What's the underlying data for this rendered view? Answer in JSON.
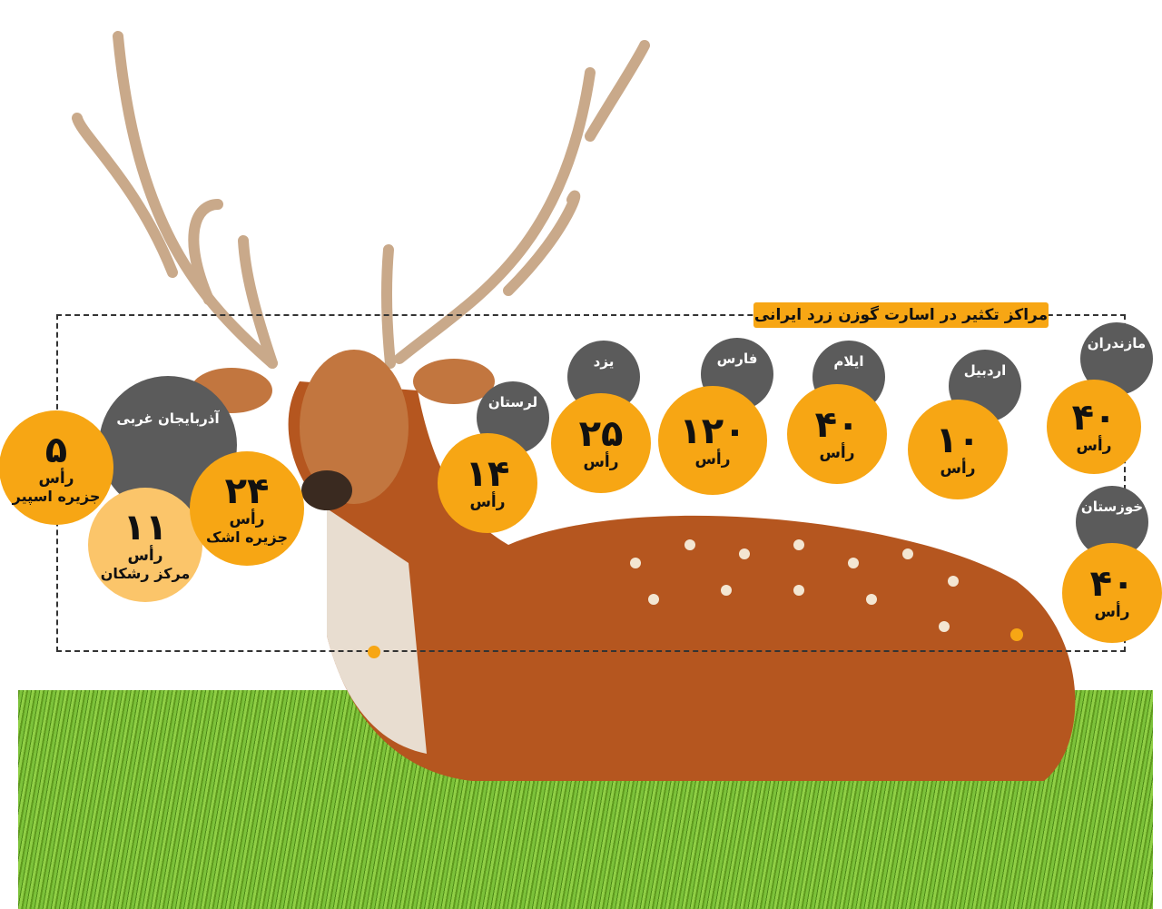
{
  "title": "مراکز تکثیر در اسارت گوزن زرد ایرانی",
  "unit": "رأس",
  "colors": {
    "accent": "#f7a614",
    "label_bg": "#5b5b5b",
    "light_accent": "#fbc56a"
  },
  "provinces": [
    {
      "name": "مازندران",
      "count": "۴۰"
    },
    {
      "name": "خوزستان",
      "count": "۴۰"
    },
    {
      "name": "اردبیل",
      "count": "۱۰"
    },
    {
      "name": "ایلام",
      "count": "۴۰"
    },
    {
      "name": "فارس",
      "count": "۱۲۰"
    },
    {
      "name": "یزد",
      "count": "۲۵"
    },
    {
      "name": "لرستان",
      "count": "۱۴"
    },
    {
      "name": "آذربایجان غربی",
      "sites": [
        {
          "place": "جزیره اسپیر",
          "count": "۵"
        },
        {
          "place": "مرکز رشکان",
          "count": "۱۱"
        },
        {
          "place": "جزیره اشک",
          "count": "۲۴"
        }
      ]
    }
  ]
}
